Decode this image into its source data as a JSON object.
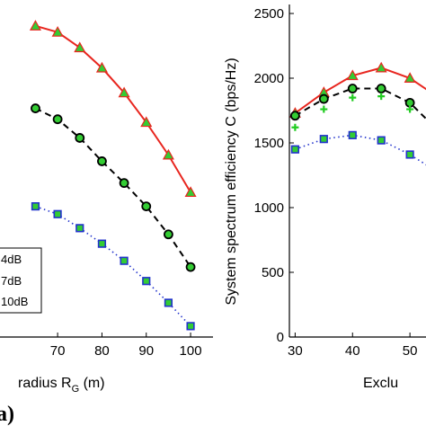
{
  "chart_data": [
    {
      "type": "line",
      "xlabel_main": "radius R",
      "xlabel_sub": "G",
      "xlabel_unit": " (m)",
      "ylabel": "",
      "xlim": [
        57,
        101
      ],
      "ylim": [
        430,
        2510
      ],
      "x_ticks": [
        70,
        80,
        90,
        100
      ],
      "grid": false,
      "legend_placement": "bottom-left",
      "legend_entries": [
        "4dB",
        "7dB",
        "10dB"
      ],
      "series": [
        {
          "color": "#e8261f",
          "style": "solid",
          "marker": "triangle",
          "x": [
            65,
            70,
            75,
            80,
            85,
            90,
            95,
            100
          ],
          "y": [
            2430,
            2390,
            2290,
            2160,
            2000,
            1810,
            1600,
            1360
          ]
        },
        {
          "color": "#000000",
          "style": "dashed",
          "marker": "circle",
          "x": [
            65,
            70,
            75,
            80,
            85,
            90,
            95,
            100
          ],
          "y": [
            1900,
            1830,
            1710,
            1560,
            1420,
            1270,
            1090,
            880
          ]
        },
        {
          "color": "#2233cc",
          "style": "dotted",
          "marker": "square",
          "x": [
            65,
            70,
            75,
            80,
            85,
            90,
            95,
            100
          ],
          "y": [
            1270,
            1220,
            1130,
            1030,
            920,
            790,
            650,
            500
          ]
        }
      ],
      "panel_label": "a)"
    },
    {
      "type": "line",
      "xlabel": "Exclu",
      "ylabel": "System spectrum efficiency C (bps/Hz)",
      "xlim": [
        29,
        60
      ],
      "ylim": [
        0,
        2500
      ],
      "x_ticks": [
        30,
        40,
        50
      ],
      "y_ticks": [
        0,
        500,
        1000,
        1500,
        2000,
        2500
      ],
      "grid": false,
      "series": [
        {
          "color": "#e8261f",
          "style": "solid",
          "marker": "triangle",
          "x": [
            30,
            35,
            40,
            45,
            50,
            55
          ],
          "y": [
            1730,
            1890,
            2020,
            2080,
            2000,
            1850
          ]
        },
        {
          "color": "#000000",
          "style": "dashed",
          "marker": "circle",
          "x": [
            30,
            35,
            40,
            45,
            50,
            55
          ],
          "y": [
            1710,
            1840,
            1920,
            1920,
            1810,
            1590
          ]
        },
        {
          "color": "#2233cc",
          "style": "dotted",
          "marker": "square",
          "x": [
            30,
            35,
            40,
            45,
            50,
            55
          ],
          "y": [
            1450,
            1530,
            1560,
            1520,
            1410,
            1270
          ]
        },
        {
          "color": "#22cc22",
          "style": "none",
          "marker": "plus",
          "x": [
            30,
            35,
            40,
            45,
            50,
            55
          ],
          "y": [
            1620,
            1760,
            1850,
            1860,
            1760,
            1560
          ]
        }
      ]
    }
  ]
}
